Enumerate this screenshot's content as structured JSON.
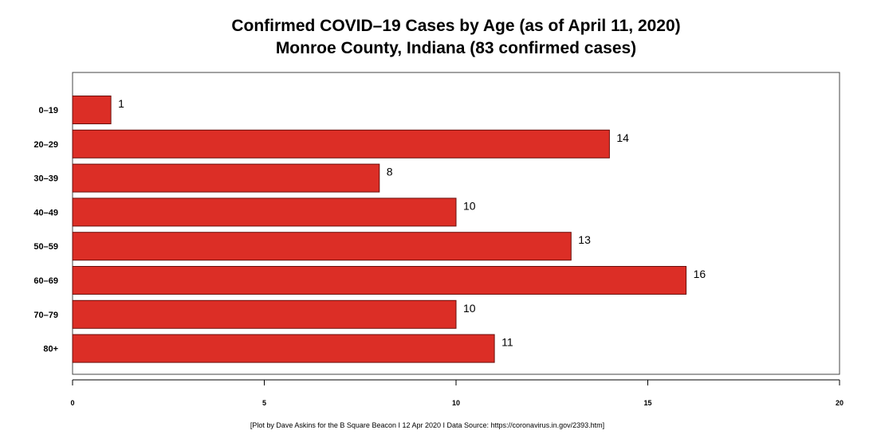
{
  "chart_data": {
    "type": "bar",
    "orientation": "horizontal",
    "title": "Confirmed COVID–19 Cases by Age (as of April 11, 2020)",
    "subtitle": "Monroe County, Indiana (83 confirmed cases)",
    "caption": "[Plot by Dave Askins for the B Square Beacon I 12 Apr 2020 I Data Source: https://coronavirus.in.gov/2393.htm]",
    "categories": [
      "0–19",
      "20–29",
      "30–39",
      "40–49",
      "50–59",
      "60–69",
      "70–79",
      "80+"
    ],
    "values": [
      1,
      14,
      8,
      10,
      13,
      16,
      10,
      11
    ],
    "xlim": [
      0,
      20
    ],
    "x_ticks": [
      0,
      5,
      10,
      15,
      20
    ],
    "xlabel": "",
    "ylabel": "",
    "grid": false,
    "bar_color": "#dc2e26",
    "bar_edge_color": "#6a0f0c"
  }
}
